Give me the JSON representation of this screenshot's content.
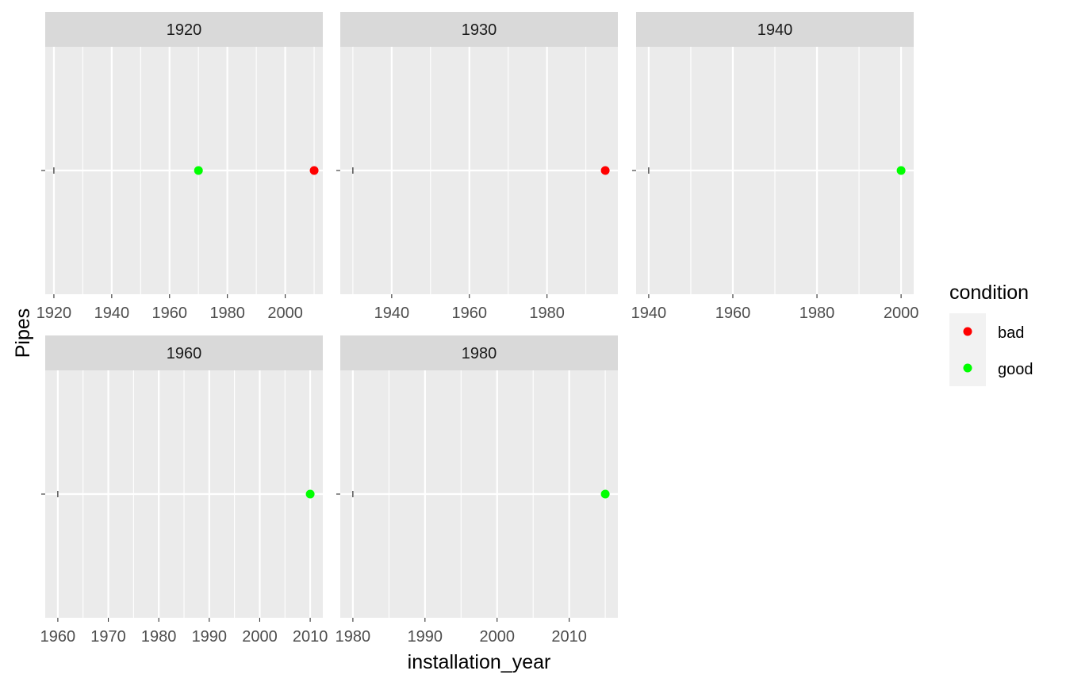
{
  "chart_data": {
    "type": "scatter",
    "facet_variable": "installation_year",
    "xlabel": "installation_year",
    "ylabel": "Pipes",
    "legend": {
      "title": "condition",
      "position": "right",
      "entries": [
        {
          "label": "bad",
          "color": "#ff0000"
        },
        {
          "label": "good",
          "color": "#00ff00"
        }
      ]
    },
    "facets": [
      {
        "label": "1920",
        "xlim": [
          1917,
          2013
        ],
        "x_ticks": [
          "1920",
          "1940",
          "1960",
          "1980",
          "2000"
        ],
        "x_tick_values": [
          1920,
          1940,
          1960,
          1980,
          2000
        ],
        "x_minor": [
          1930,
          1950,
          1970,
          1990,
          2010
        ],
        "segment_start": 1920,
        "points": [
          {
            "x": 1970,
            "condition": "good"
          },
          {
            "x": 2010,
            "condition": "bad"
          }
        ]
      },
      {
        "label": "1930",
        "xlim": [
          1926.75,
          1998.25
        ],
        "x_ticks": [
          "1940",
          "1960",
          "1980"
        ],
        "x_tick_values": [
          1940,
          1960,
          1980
        ],
        "x_minor": [
          1930,
          1950,
          1970,
          1990
        ],
        "segment_start": 1930,
        "points": [
          {
            "x": 1995,
            "condition": "bad"
          }
        ]
      },
      {
        "label": "1940",
        "xlim": [
          1937,
          2003
        ],
        "x_ticks": [
          "1940",
          "1960",
          "1980",
          "2000"
        ],
        "x_tick_values": [
          1940,
          1960,
          1980,
          2000
        ],
        "x_minor": [
          1950,
          1970,
          1990
        ],
        "segment_start": 1940,
        "points": [
          {
            "x": 2000,
            "condition": "good"
          }
        ]
      },
      {
        "label": "1960",
        "xlim": [
          1957.5,
          2012.5
        ],
        "x_ticks": [
          "1960",
          "1970",
          "1980",
          "1990",
          "2000",
          "2010"
        ],
        "x_tick_values": [
          1960,
          1970,
          1980,
          1990,
          2000,
          2010
        ],
        "x_minor": [
          1965,
          1975,
          1985,
          1995,
          2005
        ],
        "segment_start": 1960,
        "points": [
          {
            "x": 2010,
            "condition": "good"
          }
        ]
      },
      {
        "label": "1980",
        "xlim": [
          1978.25,
          2016.75
        ],
        "x_ticks": [
          "1980",
          "1990",
          "2000",
          "2010"
        ],
        "x_tick_values": [
          1980,
          1990,
          2000,
          2010
        ],
        "x_minor": [
          1985,
          1995,
          2005,
          2015
        ],
        "segment_start": 1980,
        "points": [
          {
            "x": 2015,
            "condition": "good"
          }
        ]
      }
    ]
  }
}
